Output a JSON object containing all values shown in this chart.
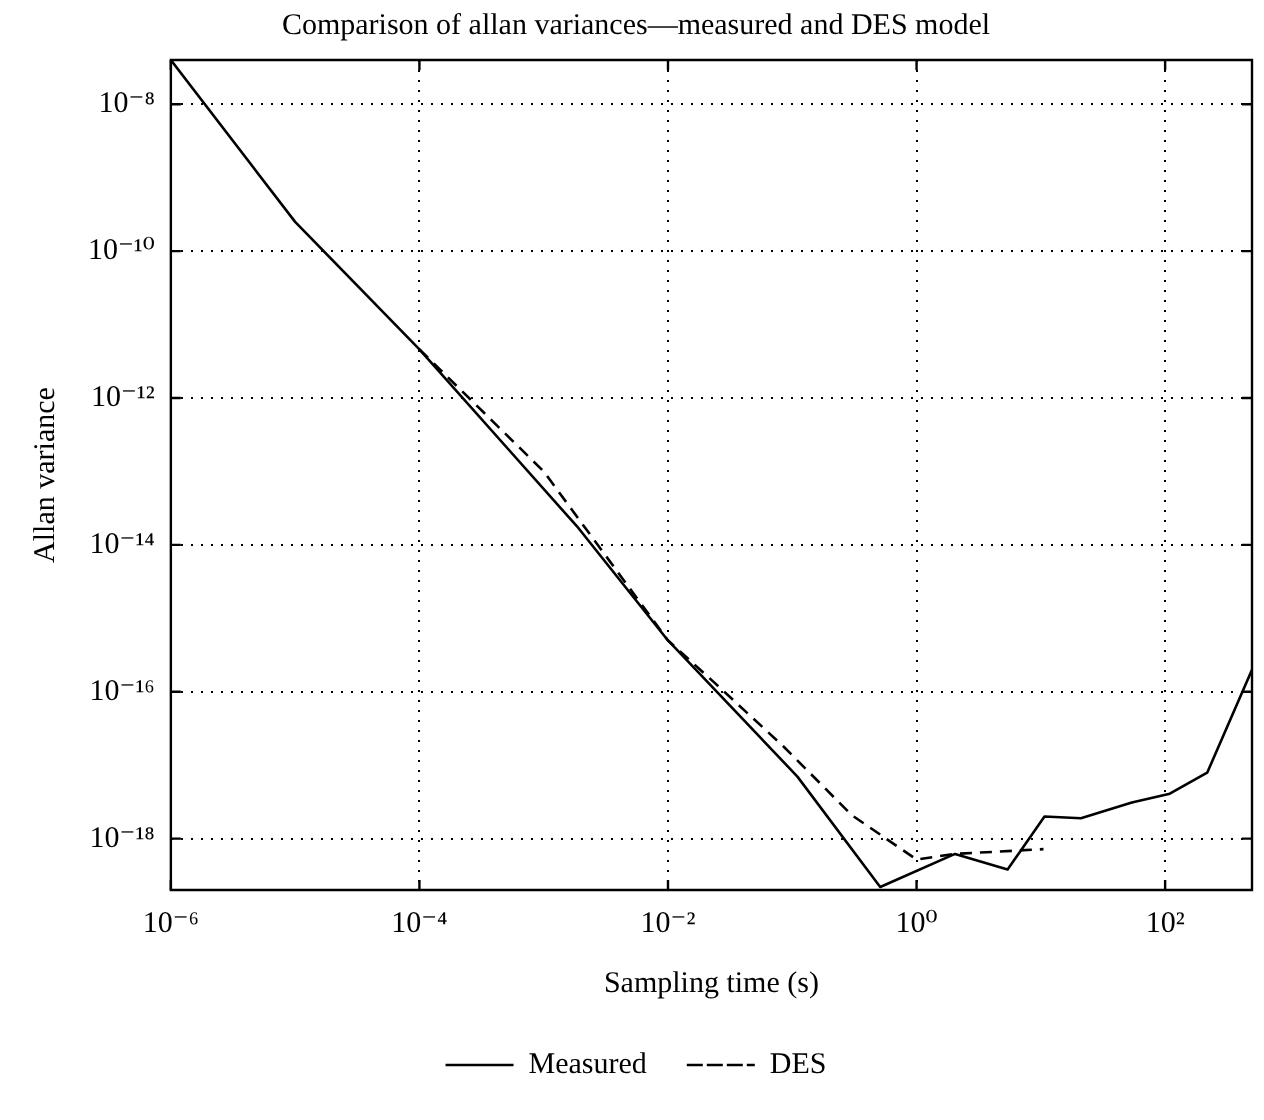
{
  "chart_data": {
    "type": "line",
    "title": "Comparison of allan variances—measured and DES model",
    "xlabel": "Sampling time (s)",
    "ylabel": "Allan variance",
    "series": [
      {
        "name": "Measured",
        "color": "#000000",
        "line_style": "solid",
        "x": [
          1e-06,
          1e-05,
          0.0001,
          0.0019,
          0.01,
          0.11,
          0.51,
          2.04,
          5.4,
          10.7,
          21,
          54,
          109,
          218,
          500
        ],
        "values": [
          4e-08,
          2.5e-10,
          4.6e-12,
          1.7e-14,
          5e-16,
          7e-18,
          2.2e-19,
          6.2e-19,
          3.8e-19,
          2e-18,
          1.9e-18,
          3.1e-18,
          4.1e-18,
          7.9e-18,
          2e-16
        ]
      },
      {
        "name": "DES",
        "color": "#000000",
        "line_style": "dashed",
        "x": [
          0.0001,
          0.001,
          0.01,
          0.024,
          0.085,
          0.3,
          1,
          2.04,
          10.5
        ],
        "values": [
          4.6e-12,
          1e-13,
          5e-16,
          1.3e-16,
          1.8e-17,
          2.1e-18,
          5.2e-19,
          6.2e-19,
          7.2e-19
        ]
      }
    ],
    "log": "xy",
    "xlim": [
      1e-06,
      500
    ],
    "ylim": [
      2e-19,
      4e-08
    ],
    "xticks": [
      {
        "value": 1e-06,
        "label": "10⁻⁶"
      },
      {
        "value": 0.0001,
        "label": "10⁻⁴"
      },
      {
        "value": 0.01,
        "label": "10⁻²"
      },
      {
        "value": 1,
        "label": "10⁰"
      },
      {
        "value": 100,
        "label": "10²"
      }
    ],
    "yticks": [
      {
        "value": 1e-18,
        "label": "10⁻¹⁸"
      },
      {
        "value": 1e-16,
        "label": "10⁻¹⁶"
      },
      {
        "value": 1e-14,
        "label": "10⁻¹⁴"
      },
      {
        "value": 1e-12,
        "label": "10⁻¹²"
      },
      {
        "value": 1e-10,
        "label": "10⁻¹⁰"
      },
      {
        "value": 1e-08,
        "label": "10⁻⁸"
      }
    ],
    "grid": true,
    "legend": "bottom",
    "marker": "none"
  }
}
